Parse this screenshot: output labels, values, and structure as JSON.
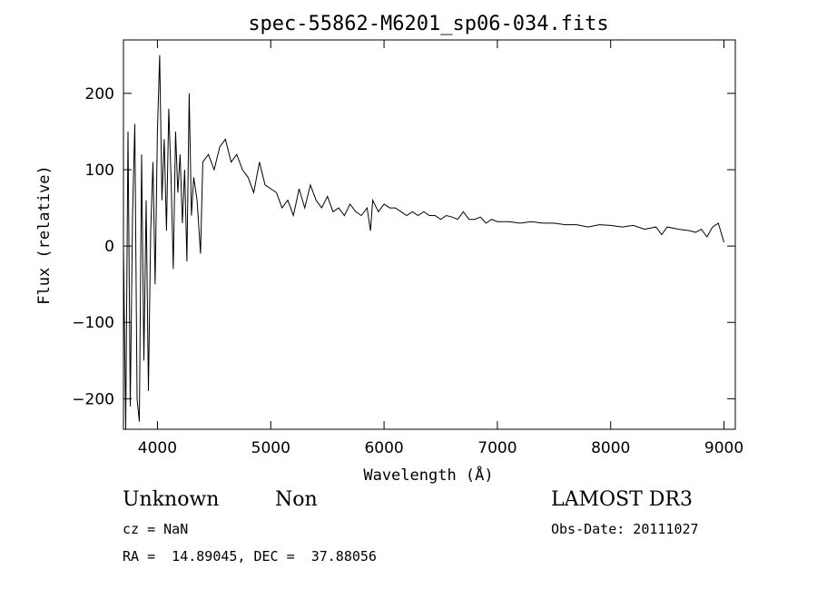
{
  "chart_data": {
    "type": "line",
    "title": "spec-55862-M6201_sp06-034.fits",
    "xlabel": "Wavelength (Å)",
    "ylabel": "Flux (relative)",
    "xlim": [
      3700,
      9100
    ],
    "ylim": [
      -240,
      270
    ],
    "xticks": [
      4000,
      5000,
      6000,
      7000,
      8000,
      9000
    ],
    "yticks": [
      -200,
      -100,
      0,
      100,
      200
    ],
    "grid": false,
    "line_color": "#000000",
    "series": [
      {
        "x": [
          3700,
          3720,
          3740,
          3760,
          3780,
          3800,
          3820,
          3840,
          3860,
          3880,
          3900,
          3920,
          3940,
          3960,
          3980,
          4000,
          4020,
          4040,
          4060,
          4080,
          4100,
          4120,
          4140,
          4160,
          4180,
          4200,
          4220,
          4240,
          4260,
          4280,
          4300,
          4320,
          4350,
          4380,
          4400,
          4450,
          4500,
          4550,
          4600,
          4650,
          4700,
          4750,
          4800,
          4850,
          4900,
          4950,
          5000,
          5050,
          5100,
          5150,
          5200,
          5250,
          5300,
          5350,
          5400,
          5450,
          5500,
          5550,
          5600,
          5650,
          5700,
          5750,
          5800,
          5850,
          5880,
          5900,
          5950,
          6000,
          6050,
          6100,
          6150,
          6200,
          6250,
          6300,
          6350,
          6400,
          6450,
          6500,
          6550,
          6600,
          6650,
          6700,
          6750,
          6800,
          6850,
          6900,
          6950,
          7000,
          7100,
          7200,
          7300,
          7400,
          7500,
          7600,
          7700,
          7800,
          7900,
          8000,
          8100,
          8200,
          8300,
          8400,
          8450,
          8500,
          8600,
          8700,
          8750,
          8800,
          8850,
          8900,
          8950,
          9000
        ],
        "values": [
          0,
          -240,
          150,
          -210,
          40,
          160,
          -200,
          -230,
          120,
          -150,
          60,
          -190,
          20,
          110,
          -50,
          150,
          250,
          60,
          140,
          20,
          180,
          90,
          -30,
          150,
          70,
          120,
          30,
          100,
          -20,
          200,
          40,
          90,
          60,
          -10,
          110,
          120,
          100,
          130,
          140,
          110,
          120,
          100,
          90,
          70,
          110,
          80,
          75,
          70,
          50,
          60,
          40,
          75,
          50,
          80,
          60,
          50,
          65,
          45,
          50,
          40,
          55,
          45,
          40,
          50,
          20,
          60,
          45,
          55,
          50,
          50,
          45,
          40,
          45,
          40,
          45,
          40,
          40,
          35,
          40,
          38,
          35,
          45,
          35,
          35,
          38,
          30,
          35,
          32,
          32,
          30,
          32,
          30,
          30,
          28,
          28,
          25,
          28,
          27,
          25,
          27,
          22,
          25,
          15,
          25,
          22,
          20,
          18,
          22,
          12,
          25,
          30,
          5
        ]
      }
    ]
  },
  "footer": {
    "object_class": "Unknown",
    "subclass": "Non",
    "survey": "LAMOST DR3",
    "cz": "cz = NaN",
    "obs_date": "Obs-Date: 20111027",
    "coords": "RA =  14.89045, DEC =  37.88056"
  }
}
